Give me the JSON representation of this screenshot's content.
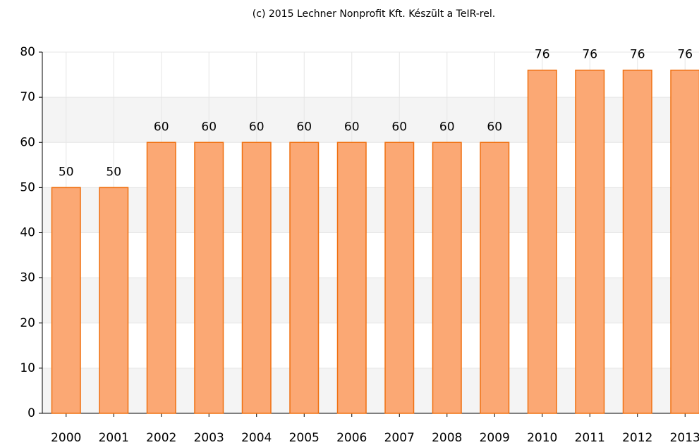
{
  "chart_data": {
    "type": "bar",
    "title": "(c) 2015 Lechner Nonprofit Kft. Készült a TeIR-rel.",
    "categories": [
      "2000",
      "2001",
      "2002",
      "2003",
      "2004",
      "2005",
      "2006",
      "2007",
      "2008",
      "2009",
      "2010",
      "2011",
      "2012",
      "2013"
    ],
    "values": [
      50,
      50,
      60,
      60,
      60,
      60,
      60,
      60,
      60,
      60,
      76,
      76,
      76,
      76
    ],
    "color": "#fba874",
    "stroke": "#f07010",
    "ylim": [
      0,
      80
    ],
    "yticks": [
      0,
      10,
      20,
      30,
      40,
      50,
      60,
      70,
      80
    ],
    "grid": true
  }
}
